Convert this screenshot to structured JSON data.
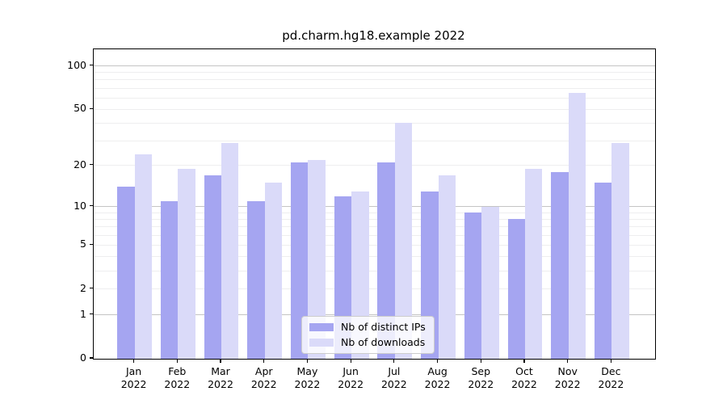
{
  "title": "pd.charm.hg18.example 2022",
  "colors": {
    "bar_ips": "#a5a5f1",
    "bar_downloads": "#dadaf9",
    "grid_major": "#c4c4c4",
    "grid_minor": "#eeeeef",
    "spine": "#000000",
    "text": "#000000",
    "legend_border": "#cccccc"
  },
  "legend": {
    "items": [
      {
        "label": "Nb of distinct IPs",
        "color_key": "bar_ips"
      },
      {
        "label": "Nb of downloads",
        "color_key": "bar_downloads"
      }
    ]
  },
  "axes": {
    "y_tick_labels": [
      "100",
      "50",
      "20",
      "10",
      "5",
      "2",
      "1",
      "0"
    ],
    "y_tick_values": [
      100,
      50,
      20,
      10,
      5,
      2,
      1,
      0
    ],
    "x_month_labels": [
      "Jan",
      "Feb",
      "Mar",
      "Apr",
      "May",
      "Jun",
      "Jul",
      "Aug",
      "Sep",
      "Oct",
      "Nov",
      "Dec"
    ],
    "x_year_label": "2022"
  },
  "chart_data": {
    "type": "bar",
    "title": "pd.charm.hg18.example 2022",
    "categories": [
      "Jan 2022",
      "Feb 2022",
      "Mar 2022",
      "Apr 2022",
      "May 2022",
      "Jun 2022",
      "Jul 2022",
      "Aug 2022",
      "Sep 2022",
      "Oct 2022",
      "Nov 2022",
      "Dec 2022"
    ],
    "series": [
      {
        "name": "Nb of distinct IPs",
        "values": [
          14,
          11,
          17,
          11,
          21,
          12,
          21,
          13,
          9,
          8,
          18,
          15
        ]
      },
      {
        "name": "Nb of downloads",
        "values": [
          24,
          19,
          29,
          15,
          22,
          13,
          40,
          17,
          10,
          19,
          65,
          29
        ]
      }
    ],
    "yscale": "log10(1+v)",
    "ylim": [
      0,
      130
    ],
    "yticks": [
      0,
      1,
      2,
      5,
      10,
      20,
      50,
      100
    ],
    "grid_major_values": [
      1,
      10,
      100
    ],
    "grid_minor_values": [
      2,
      3,
      4,
      5,
      6,
      7,
      8,
      9,
      20,
      30,
      40,
      50,
      60,
      70,
      80,
      90
    ],
    "grid": "horizontal",
    "legend_position": "lower center"
  }
}
